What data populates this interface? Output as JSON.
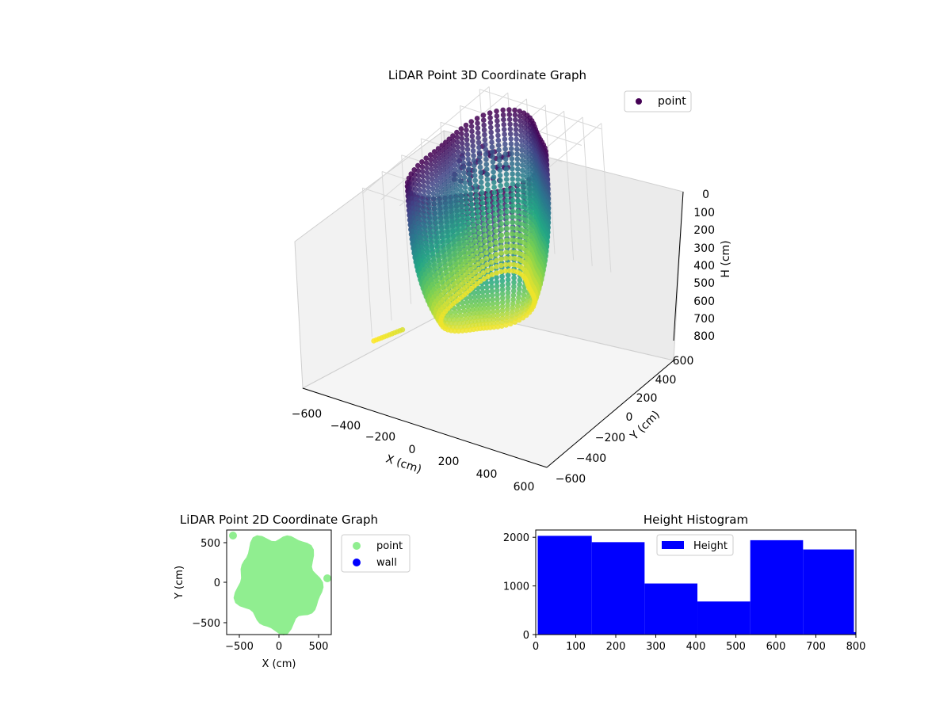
{
  "chart_data": [
    {
      "type": "scatter3d",
      "title": "LiDAR Point 3D Coordinate Graph",
      "xlabel": "X (cm)",
      "ylabel": "Y (cm)",
      "zlabel": "H (cm)",
      "xlim": [
        -650,
        650
      ],
      "ylim": [
        -650,
        650
      ],
      "zlim": [
        800,
        0
      ],
      "xticks": [
        "−600",
        "−400",
        "−200",
        "0",
        "200",
        "400",
        "600"
      ],
      "yticks": [
        "−600",
        "−400",
        "−200",
        "0",
        "200",
        "400",
        "600"
      ],
      "zticks": [
        "0",
        "100",
        "200",
        "300",
        "400",
        "500",
        "600",
        "700",
        "800"
      ],
      "legend": {
        "position": "top-right",
        "entries": [
          "point"
        ]
      },
      "colormap": "viridis",
      "grid": true,
      "series": [
        {
          "name": "point",
          "color": "#440154",
          "description_ring_radius_cm": 560,
          "height_range_cm": [
            0,
            800
          ]
        }
      ]
    },
    {
      "type": "scatter",
      "title": "LiDAR Point 2D Coordinate Graph",
      "xlabel": "X (cm)",
      "ylabel": "Y (cm)",
      "xlim": [
        -650,
        650
      ],
      "ylim": [
        -650,
        650
      ],
      "xticks": [
        "−500",
        "0",
        "500"
      ],
      "yticks": [
        "500",
        "0",
        "−500"
      ],
      "legend": {
        "position": "outside-right",
        "entries": [
          "point",
          "wall"
        ]
      },
      "series": [
        {
          "name": "point",
          "color": "#90ee90"
        },
        {
          "name": "wall",
          "color": "#0000ff"
        }
      ]
    },
    {
      "type": "bar",
      "title": "Height Histogram",
      "xlim": [
        0,
        800
      ],
      "ylim": [
        0,
        2150
      ],
      "xticks": [
        "0",
        "100",
        "200",
        "300",
        "400",
        "500",
        "600",
        "700",
        "800"
      ],
      "yticks": [
        "0",
        "1000",
        "2000"
      ],
      "legend": {
        "position": "top-center",
        "entries": [
          "Height"
        ]
      },
      "series": [
        {
          "name": "Height",
          "color": "#0000ff",
          "bins": [
            {
              "x0": 5,
              "x1": 140,
              "value": 2030
            },
            {
              "x0": 140,
              "x1": 272,
              "value": 1900
            },
            {
              "x0": 272,
              "x1": 404,
              "value": 1050
            },
            {
              "x0": 404,
              "x1": 536,
              "value": 680
            },
            {
              "x0": 536,
              "x1": 668,
              "value": 1940
            },
            {
              "x0": 668,
              "x1": 795,
              "value": 1750
            },
            {
              "x0": 795,
              "x1": 800,
              "value": 50
            }
          ]
        }
      ]
    }
  ]
}
